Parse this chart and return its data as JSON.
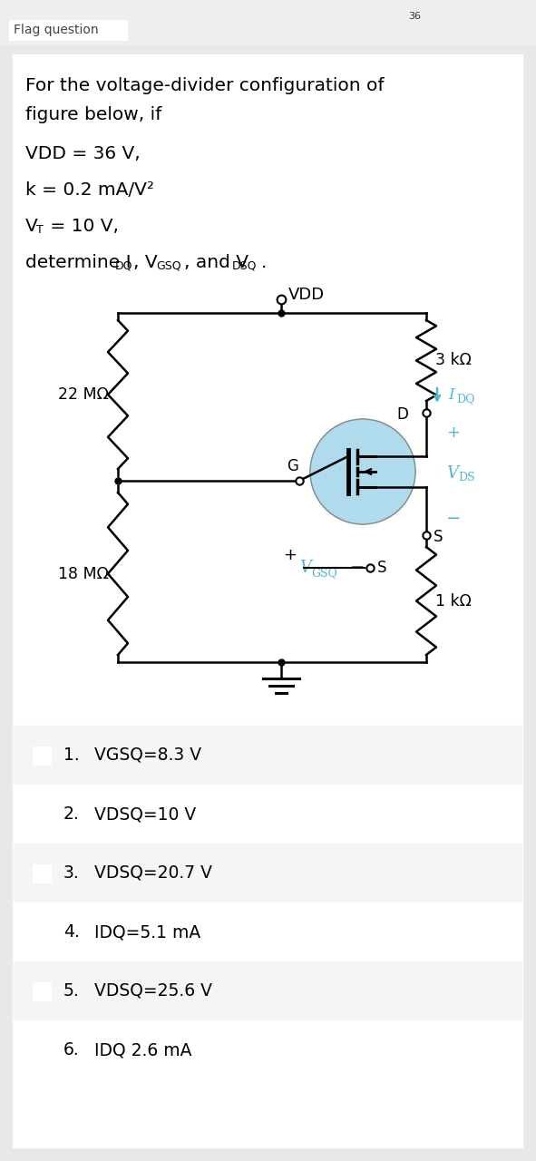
{
  "options": [
    {
      "num": "1.",
      "text": "VGSQ=8.3 V"
    },
    {
      "num": "2.",
      "text": "VDSQ=10 V"
    },
    {
      "num": "3.",
      "text": "VDSQ=20.7 V"
    },
    {
      "num": "4.",
      "text": "IDQ=5.1 mA"
    },
    {
      "num": "5.",
      "text": "VDSQ=25.6 V"
    },
    {
      "num": "6.",
      "text": "IDQ 2.6 mA"
    }
  ],
  "circuit": {
    "R1_label": "22 MΩ",
    "R2_label": "18 MΩ",
    "RD_label": "3 kΩ",
    "RS_label": "1 kΩ",
    "VDD_label": "VDD",
    "IDQ_label": "I",
    "IDQ_sub": "DQ",
    "VDS_label": "V",
    "VDS_sub": "DS",
    "VGSQ_label": "V",
    "VGSQ_sub": "GSQ",
    "G_label": "G",
    "D_label": "D",
    "S_label": "S"
  },
  "transistor_fill": "#a8d8ea",
  "cyan_text": "#4db8d4",
  "line_color": "#000000",
  "text_color": "#000000",
  "option_bg_odd": "#f5f5f5",
  "option_bg_even": "#ffffff",
  "card_bg": "#ffffff",
  "page_bg": "#e8e8e8",
  "header_bg": "#eeeeee"
}
